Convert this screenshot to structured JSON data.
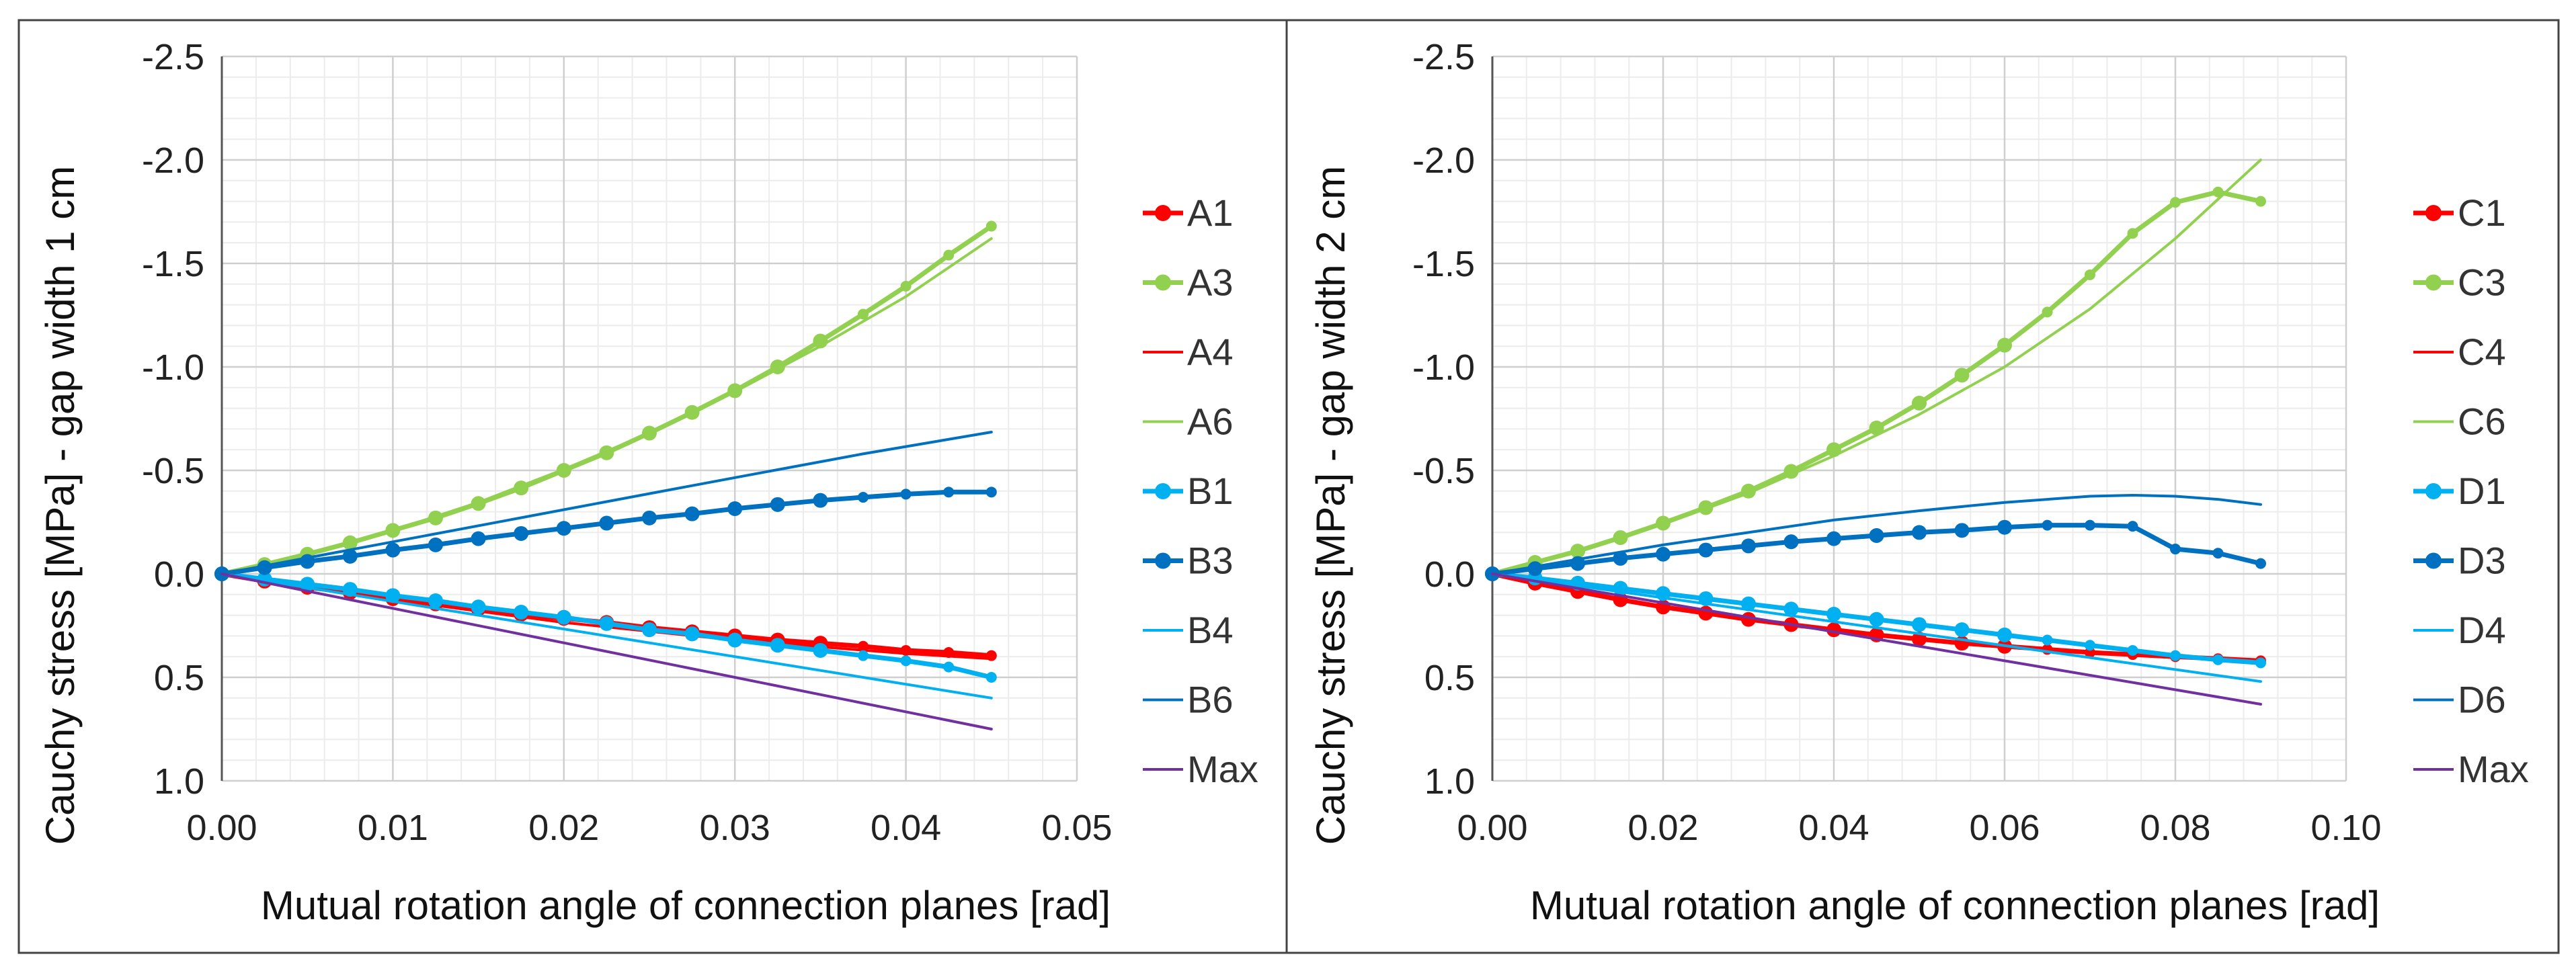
{
  "chart_data": [
    {
      "type": "line",
      "xlabel": "Mutual rotation angle of connection planes [rad]",
      "ylabel": "Cauchy stress [MPa] - gap width 1 cm",
      "xlim": [
        0,
        0.05
      ],
      "ylim": [
        1.0,
        -2.5
      ],
      "x_ticks": [
        0,
        0.01,
        0.02,
        0.03,
        0.04,
        0.05
      ],
      "x_tick_labels": [
        "0.00",
        "0.01",
        "0.02",
        "0.03",
        "0.04",
        "0.05"
      ],
      "y_ticks": [
        -2.5,
        -2.0,
        -1.5,
        -1.0,
        -0.5,
        0.0,
        0.5,
        1.0
      ],
      "y_tick_labels": [
        "-2.5",
        "-2.0",
        "-1.5",
        "-1.0",
        "-0.5",
        "0.0",
        "0.5",
        "1.0"
      ],
      "grid": true,
      "legend_position": "right",
      "series": [
        {
          "name": "A1",
          "color": "#ff0000",
          "marker": true,
          "line_width": "thick",
          "x": [
            0,
            0.0025,
            0.005,
            0.0075,
            0.01,
            0.0125,
            0.015,
            0.0175,
            0.02,
            0.0225,
            0.025,
            0.0275,
            0.03,
            0.0325,
            0.035,
            0.0375,
            0.04,
            0.0425,
            0.045
          ],
          "y": [
            0,
            0.035,
            0.065,
            0.09,
            0.12,
            0.145,
            0.17,
            0.195,
            0.215,
            0.235,
            0.26,
            0.28,
            0.3,
            0.32,
            0.335,
            0.35,
            0.37,
            0.38,
            0.395
          ]
        },
        {
          "name": "A3",
          "color": "#92d050",
          "marker": true,
          "line_width": "thick",
          "x": [
            0,
            0.0025,
            0.005,
            0.0075,
            0.01,
            0.0125,
            0.015,
            0.0175,
            0.02,
            0.0225,
            0.025,
            0.0275,
            0.03,
            0.0325,
            0.035,
            0.0375,
            0.04,
            0.0425,
            0.045
          ],
          "y": [
            0,
            -0.045,
            -0.095,
            -0.15,
            -0.21,
            -0.27,
            -0.34,
            -0.415,
            -0.5,
            -0.585,
            -0.68,
            -0.78,
            -0.885,
            -1.0,
            -1.125,
            -1.255,
            -1.39,
            -1.54,
            -1.68
          ]
        },
        {
          "name": "A4",
          "color": "#ff0000",
          "marker": false,
          "line_width": "thin",
          "x": [
            0,
            0.01,
            0.02,
            0.03,
            0.04,
            0.045
          ],
          "y": [
            0,
            0.125,
            0.235,
            0.32,
            0.385,
            0.41
          ]
        },
        {
          "name": "A6",
          "color": "#92d050",
          "marker": false,
          "line_width": "thin",
          "x": [
            0,
            0.005,
            0.01,
            0.015,
            0.02,
            0.025,
            0.03,
            0.035,
            0.04,
            0.045
          ],
          "y": [
            0,
            -0.1,
            -0.21,
            -0.345,
            -0.505,
            -0.68,
            -0.88,
            -1.1,
            -1.34,
            -1.62
          ]
        },
        {
          "name": "B1",
          "color": "#00b0f0",
          "marker": true,
          "line_width": "thick",
          "x": [
            0,
            0.0025,
            0.005,
            0.0075,
            0.01,
            0.0125,
            0.015,
            0.0175,
            0.02,
            0.0225,
            0.025,
            0.0275,
            0.03,
            0.0325,
            0.035,
            0.0375,
            0.04,
            0.0425,
            0.045
          ],
          "y": [
            0,
            0.025,
            0.05,
            0.075,
            0.105,
            0.13,
            0.16,
            0.185,
            0.21,
            0.24,
            0.27,
            0.29,
            0.32,
            0.345,
            0.37,
            0.395,
            0.42,
            0.45,
            0.5
          ]
        },
        {
          "name": "B3",
          "color": "#0070c0",
          "marker": true,
          "line_width": "thick",
          "x": [
            0,
            0.0025,
            0.005,
            0.0075,
            0.01,
            0.0125,
            0.015,
            0.0175,
            0.02,
            0.0225,
            0.025,
            0.0275,
            0.03,
            0.0325,
            0.035,
            0.0375,
            0.04,
            0.0425,
            0.045
          ],
          "y": [
            0,
            -0.03,
            -0.06,
            -0.085,
            -0.115,
            -0.14,
            -0.17,
            -0.195,
            -0.22,
            -0.245,
            -0.27,
            -0.29,
            -0.315,
            -0.335,
            -0.355,
            -0.37,
            -0.385,
            -0.395,
            -0.395
          ]
        },
        {
          "name": "B4",
          "color": "#00b0f0",
          "marker": false,
          "line_width": "thin",
          "x": [
            0,
            0.045
          ],
          "y": [
            0,
            0.6
          ]
        },
        {
          "name": "B6",
          "color": "#0070c0",
          "marker": false,
          "line_width": "thin",
          "x": [
            0,
            0.01,
            0.02,
            0.03,
            0.0375,
            0.045
          ],
          "y": [
            0,
            -0.155,
            -0.31,
            -0.465,
            -0.58,
            -0.685
          ]
        },
        {
          "name": "Max",
          "color": "#7030a0",
          "marker": false,
          "line_width": "thin",
          "x": [
            0,
            0.045
          ],
          "y": [
            0,
            0.75
          ]
        }
      ]
    },
    {
      "type": "line",
      "xlabel": "Mutual rotation angle of connection planes [rad]",
      "ylabel": "Cauchy stress [MPa] - gap width 2 cm",
      "xlim": [
        0,
        0.1
      ],
      "ylim": [
        1.0,
        -2.5
      ],
      "x_ticks": [
        0,
        0.02,
        0.04,
        0.06,
        0.08,
        0.1
      ],
      "x_tick_labels": [
        "0.00",
        "0.02",
        "0.04",
        "0.06",
        "0.08",
        "0.10"
      ],
      "y_ticks": [
        -2.5,
        -2.0,
        -1.5,
        -1.0,
        -0.5,
        0.0,
        0.5,
        1.0
      ],
      "y_tick_labels": [
        "-2.5",
        "-2.0",
        "-1.5",
        "-1.0",
        "-0.5",
        "0.0",
        "0.5",
        "1.0"
      ],
      "grid": true,
      "legend_position": "right",
      "series": [
        {
          "name": "C1",
          "color": "#ff0000",
          "marker": true,
          "line_width": "thick",
          "x": [
            0,
            0.005,
            0.01,
            0.015,
            0.02,
            0.025,
            0.03,
            0.035,
            0.04,
            0.045,
            0.05,
            0.055,
            0.06,
            0.065,
            0.07,
            0.075,
            0.08,
            0.085,
            0.09
          ],
          "y": [
            0,
            0.045,
            0.085,
            0.125,
            0.16,
            0.19,
            0.22,
            0.245,
            0.27,
            0.295,
            0.315,
            0.335,
            0.35,
            0.365,
            0.38,
            0.39,
            0.4,
            0.41,
            0.42
          ]
        },
        {
          "name": "C3",
          "color": "#92d050",
          "marker": true,
          "line_width": "thick",
          "x": [
            0,
            0.005,
            0.01,
            0.015,
            0.02,
            0.025,
            0.03,
            0.035,
            0.04,
            0.045,
            0.05,
            0.055,
            0.06,
            0.065,
            0.07,
            0.075,
            0.08,
            0.085,
            0.09
          ],
          "y": [
            0,
            -0.055,
            -0.11,
            -0.175,
            -0.245,
            -0.32,
            -0.4,
            -0.495,
            -0.6,
            -0.705,
            -0.825,
            -0.96,
            -1.105,
            -1.265,
            -1.445,
            -1.645,
            -1.795,
            -1.845,
            -1.8
          ]
        },
        {
          "name": "C4",
          "color": "#ff0000",
          "marker": false,
          "line_width": "thin",
          "x": [
            0,
            0.02,
            0.04,
            0.06,
            0.08,
            0.09
          ],
          "y": [
            0,
            0.16,
            0.275,
            0.355,
            0.405,
            0.42
          ]
        },
        {
          "name": "C6",
          "color": "#92d050",
          "marker": false,
          "line_width": "thin",
          "x": [
            0,
            0.01,
            0.02,
            0.03,
            0.04,
            0.05,
            0.06,
            0.07,
            0.08,
            0.09
          ],
          "y": [
            0,
            -0.11,
            -0.24,
            -0.39,
            -0.57,
            -0.77,
            -1.0,
            -1.28,
            -1.62,
            -2.0
          ]
        },
        {
          "name": "D1",
          "color": "#00b0f0",
          "marker": true,
          "line_width": "thick",
          "x": [
            0,
            0.005,
            0.01,
            0.015,
            0.02,
            0.025,
            0.03,
            0.035,
            0.04,
            0.045,
            0.05,
            0.055,
            0.06,
            0.065,
            0.07,
            0.075,
            0.08,
            0.085,
            0.09
          ],
          "y": [
            0,
            0.02,
            0.045,
            0.07,
            0.095,
            0.12,
            0.145,
            0.17,
            0.195,
            0.22,
            0.245,
            0.27,
            0.295,
            0.32,
            0.345,
            0.37,
            0.395,
            0.415,
            0.43
          ]
        },
        {
          "name": "D3",
          "color": "#0070c0",
          "marker": true,
          "line_width": "thick",
          "x": [
            0,
            0.005,
            0.01,
            0.015,
            0.02,
            0.025,
            0.03,
            0.035,
            0.04,
            0.045,
            0.05,
            0.055,
            0.06,
            0.065,
            0.07,
            0.075,
            0.08,
            0.085,
            0.09
          ],
          "y": [
            0,
            -0.025,
            -0.05,
            -0.075,
            -0.095,
            -0.115,
            -0.135,
            -0.155,
            -0.17,
            -0.185,
            -0.2,
            -0.21,
            -0.225,
            -0.235,
            -0.235,
            -0.23,
            -0.12,
            -0.1,
            -0.05
          ]
        },
        {
          "name": "D4",
          "color": "#00b0f0",
          "marker": false,
          "line_width": "thin",
          "x": [
            0,
            0.09
          ],
          "y": [
            0,
            0.52
          ]
        },
        {
          "name": "D6",
          "color": "#0070c0",
          "marker": false,
          "line_width": "thin",
          "x": [
            0,
            0.01,
            0.02,
            0.03,
            0.04,
            0.05,
            0.06,
            0.07,
            0.075,
            0.08,
            0.085,
            0.09
          ],
          "y": [
            0,
            -0.07,
            -0.14,
            -0.2,
            -0.26,
            -0.305,
            -0.345,
            -0.375,
            -0.38,
            -0.375,
            -0.36,
            -0.335
          ]
        },
        {
          "name": "Max",
          "color": "#7030a0",
          "marker": false,
          "line_width": "thin",
          "x": [
            0,
            0.09
          ],
          "y": [
            0,
            0.63
          ]
        }
      ]
    }
  ]
}
